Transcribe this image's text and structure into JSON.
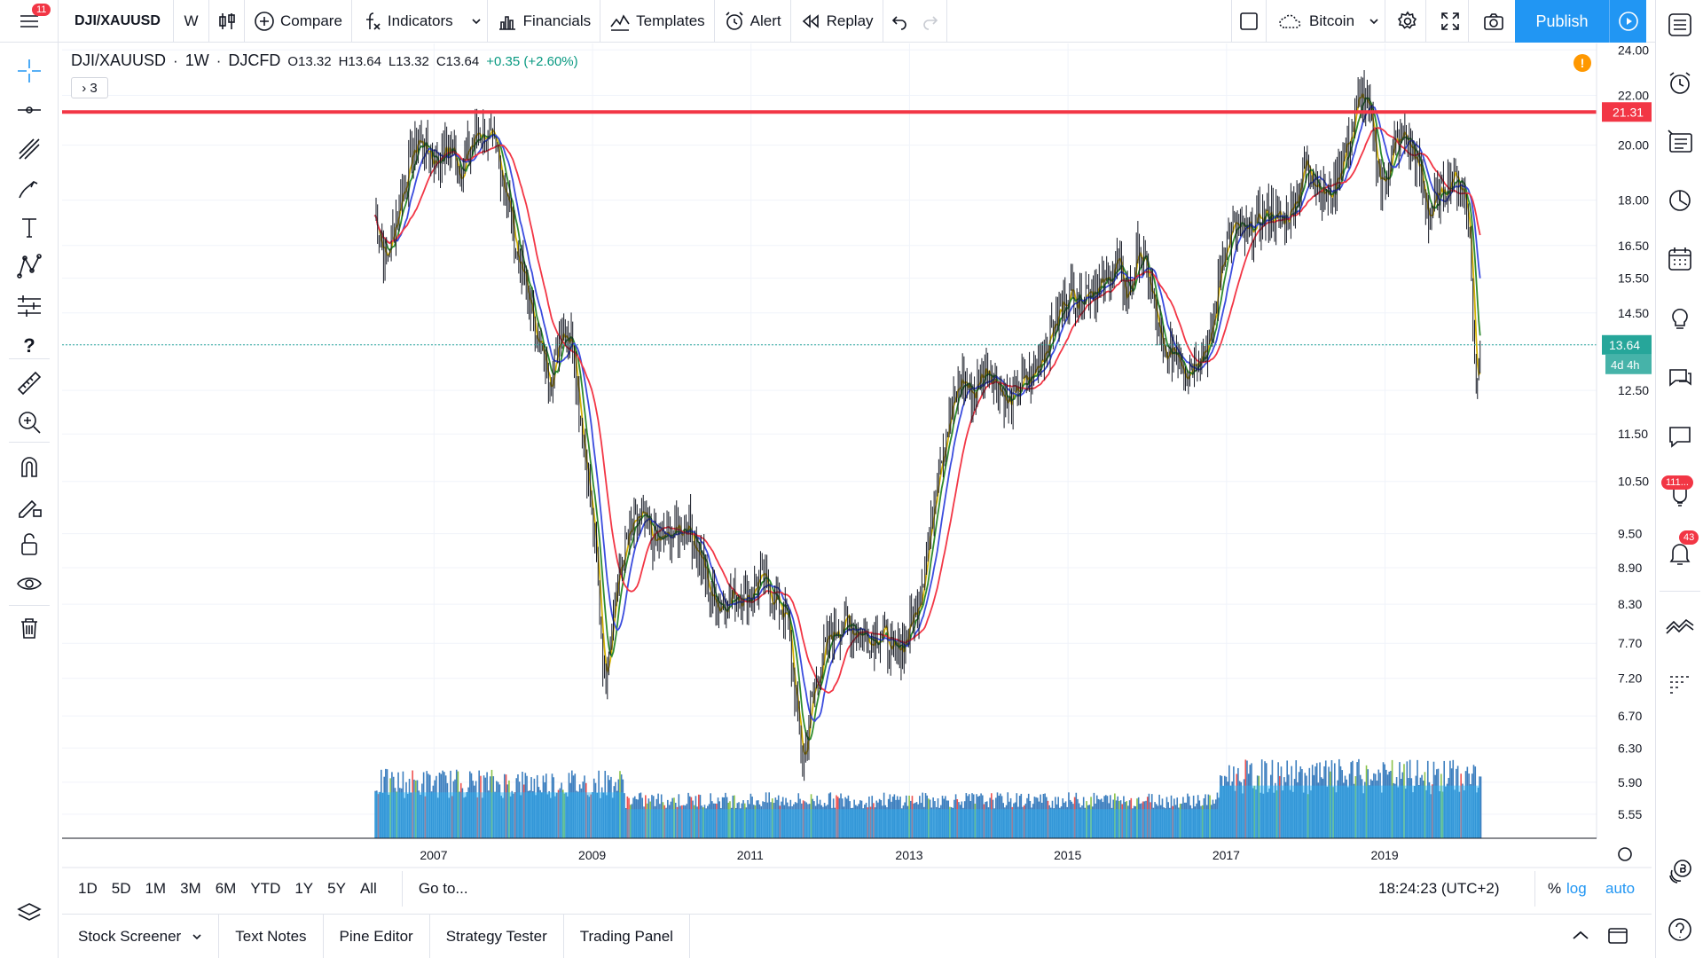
{
  "topbar": {
    "menu_badge": "11",
    "symbol": "DJI/XAUUSD",
    "interval": "W",
    "compare_label": "Compare",
    "indicators_label": "Indicators",
    "financials_label": "Financials",
    "templates_label": "Templates",
    "alert_label": "Alert",
    "replay_label": "Replay",
    "layout_name": "Bitcoin",
    "publish_label": "Publish"
  },
  "legend": {
    "symbol": "DJI/XAUUSD",
    "sep1": "·",
    "interval": "1W",
    "sep2": "·",
    "exchange": "DJCFD",
    "open": "O13.32",
    "high": "H13.64",
    "low": "L13.32",
    "close": "C13.64",
    "change": "+0.35 (+2.60%)",
    "indicators_collapsed": "› 3"
  },
  "chart_data": {
    "type": "candlestick",
    "x_labels": [
      "2007",
      "2009",
      "2011",
      "2013",
      "2015",
      "2017",
      "2019"
    ],
    "y_labels": [
      "24.00",
      "22.00",
      "20.00",
      "18.00",
      "16.50",
      "15.50",
      "14.50",
      "13.64",
      "12.50",
      "11.50",
      "10.50",
      "9.50",
      "8.90",
      "8.30",
      "7.70",
      "7.20",
      "6.70",
      "6.30",
      "5.90",
      "5.55"
    ],
    "y_scale": "log",
    "y_range": [
      5.3,
      24.3
    ],
    "horizontal_line": {
      "value": 21.31,
      "label": "21.31",
      "color": "#f23645"
    },
    "last_price": {
      "value": 13.64,
      "label": "13.64",
      "countdown": "4d 4h",
      "color": "#26a69a"
    },
    "series": [
      {
        "name": "price",
        "kind": "candles",
        "points": [
          [
            2006.25,
            17.5
          ],
          [
            2006.4,
            16.0
          ],
          [
            2006.6,
            18.4
          ],
          [
            2006.8,
            20.3
          ],
          [
            2007.0,
            19.4
          ],
          [
            2007.2,
            19.9
          ],
          [
            2007.35,
            19.0
          ],
          [
            2007.5,
            20.3
          ],
          [
            2007.6,
            20.6
          ],
          [
            2007.8,
            19.6
          ],
          [
            2007.9,
            18.4
          ],
          [
            2008.05,
            16.2
          ],
          [
            2008.2,
            14.8
          ],
          [
            2008.35,
            13.4
          ],
          [
            2008.5,
            12.8
          ],
          [
            2008.6,
            14.2
          ],
          [
            2008.75,
            13.8
          ],
          [
            2008.85,
            11.8
          ],
          [
            2008.95,
            10.4
          ],
          [
            2009.05,
            8.9
          ],
          [
            2009.15,
            7.2
          ],
          [
            2009.3,
            8.6
          ],
          [
            2009.45,
            9.4
          ],
          [
            2009.6,
            9.8
          ],
          [
            2009.8,
            9.3
          ],
          [
            2010.0,
            9.5
          ],
          [
            2010.2,
            9.7
          ],
          [
            2010.35,
            9.1
          ],
          [
            2010.5,
            8.4
          ],
          [
            2010.65,
            8.3
          ],
          [
            2010.8,
            8.5
          ],
          [
            2010.95,
            8.4
          ],
          [
            2011.1,
            8.7
          ],
          [
            2011.3,
            8.4
          ],
          [
            2011.45,
            8.1
          ],
          [
            2011.55,
            7.0
          ],
          [
            2011.65,
            6.1
          ],
          [
            2011.75,
            6.8
          ],
          [
            2011.9,
            7.5
          ],
          [
            2012.05,
            7.9
          ],
          [
            2012.2,
            8.0
          ],
          [
            2012.35,
            7.9
          ],
          [
            2012.5,
            7.8
          ],
          [
            2012.65,
            7.9
          ],
          [
            2012.8,
            7.5
          ],
          [
            2012.95,
            7.8
          ],
          [
            2013.1,
            8.3
          ],
          [
            2013.25,
            9.4
          ],
          [
            2013.35,
            10.8
          ],
          [
            2013.5,
            11.8
          ],
          [
            2013.65,
            12.8
          ],
          [
            2013.8,
            12.4
          ],
          [
            2013.95,
            13.1
          ],
          [
            2014.1,
            12.8
          ],
          [
            2014.25,
            12.1
          ],
          [
            2014.4,
            12.6
          ],
          [
            2014.55,
            12.8
          ],
          [
            2014.7,
            13.6
          ],
          [
            2014.85,
            14.3
          ],
          [
            2015.0,
            15.1
          ],
          [
            2015.15,
            15.0
          ],
          [
            2015.3,
            15.3
          ],
          [
            2015.45,
            15.2
          ],
          [
            2015.6,
            16.0
          ],
          [
            2015.75,
            14.9
          ],
          [
            2015.9,
            16.4
          ],
          [
            2016.05,
            15.1
          ],
          [
            2016.2,
            13.2
          ],
          [
            2016.35,
            13.6
          ],
          [
            2016.5,
            13.0
          ],
          [
            2016.65,
            13.5
          ],
          [
            2016.8,
            13.7
          ],
          [
            2016.95,
            16.3
          ],
          [
            2017.1,
            17.1
          ],
          [
            2017.25,
            16.8
          ],
          [
            2017.4,
            17.3
          ],
          [
            2017.55,
            17.6
          ],
          [
            2017.7,
            17.2
          ],
          [
            2017.85,
            18.0
          ],
          [
            2018.0,
            19.3
          ],
          [
            2018.15,
            18.7
          ],
          [
            2018.3,
            18.0
          ],
          [
            2018.45,
            19.4
          ],
          [
            2018.6,
            20.8
          ],
          [
            2018.7,
            22.2
          ],
          [
            2018.85,
            20.4
          ],
          [
            2018.95,
            18.4
          ],
          [
            2019.1,
            19.8
          ],
          [
            2019.25,
            20.4
          ],
          [
            2019.4,
            19.3
          ],
          [
            2019.55,
            17.5
          ],
          [
            2019.7,
            18.2
          ],
          [
            2019.85,
            18.9
          ],
          [
            2019.95,
            18.6
          ],
          [
            2020.05,
            17.6
          ],
          [
            2020.15,
            12.3
          ],
          [
            2020.2,
            13.6
          ]
        ]
      },
      {
        "name": "ma-fast",
        "color": "#d4b106"
      },
      {
        "name": "ma-green",
        "color": "#2e8b2e"
      },
      {
        "name": "ma-blue",
        "color": "#3b4cde"
      },
      {
        "name": "ma-red",
        "color": "#f23645"
      }
    ],
    "volume": {
      "up_color": "#8bc34a",
      "down_color": "#ef5350",
      "ma_color": "#29b6f6",
      "bar_color": "#3d7fbf"
    }
  },
  "bottom_bar": {
    "timeframes": [
      "1D",
      "5D",
      "1M",
      "3M",
      "6M",
      "YTD",
      "1Y",
      "5Y",
      "All"
    ],
    "goto_label": "Go to...",
    "clock": "18:24:23 (UTC+2)",
    "pct_label": "%",
    "log_label": "log",
    "auto_label": "auto"
  },
  "bottom_panel": {
    "tabs": [
      "Stock Screener",
      "Text Notes",
      "Pine Editor",
      "Strategy Tester",
      "Trading Panel"
    ]
  },
  "right_sidebar": {
    "ideas_badge": "111...",
    "notifications_badge": "43"
  },
  "icons": {
    "crosshair": "crosshair-icon",
    "trendline": "trendline-icon",
    "text": "text-icon",
    "ruler": "ruler-icon",
    "zoom": "zoom-in-icon",
    "magnet": "magnet-icon",
    "lock": "lock-icon",
    "eye": "eye-icon",
    "trash": "trash-icon"
  }
}
